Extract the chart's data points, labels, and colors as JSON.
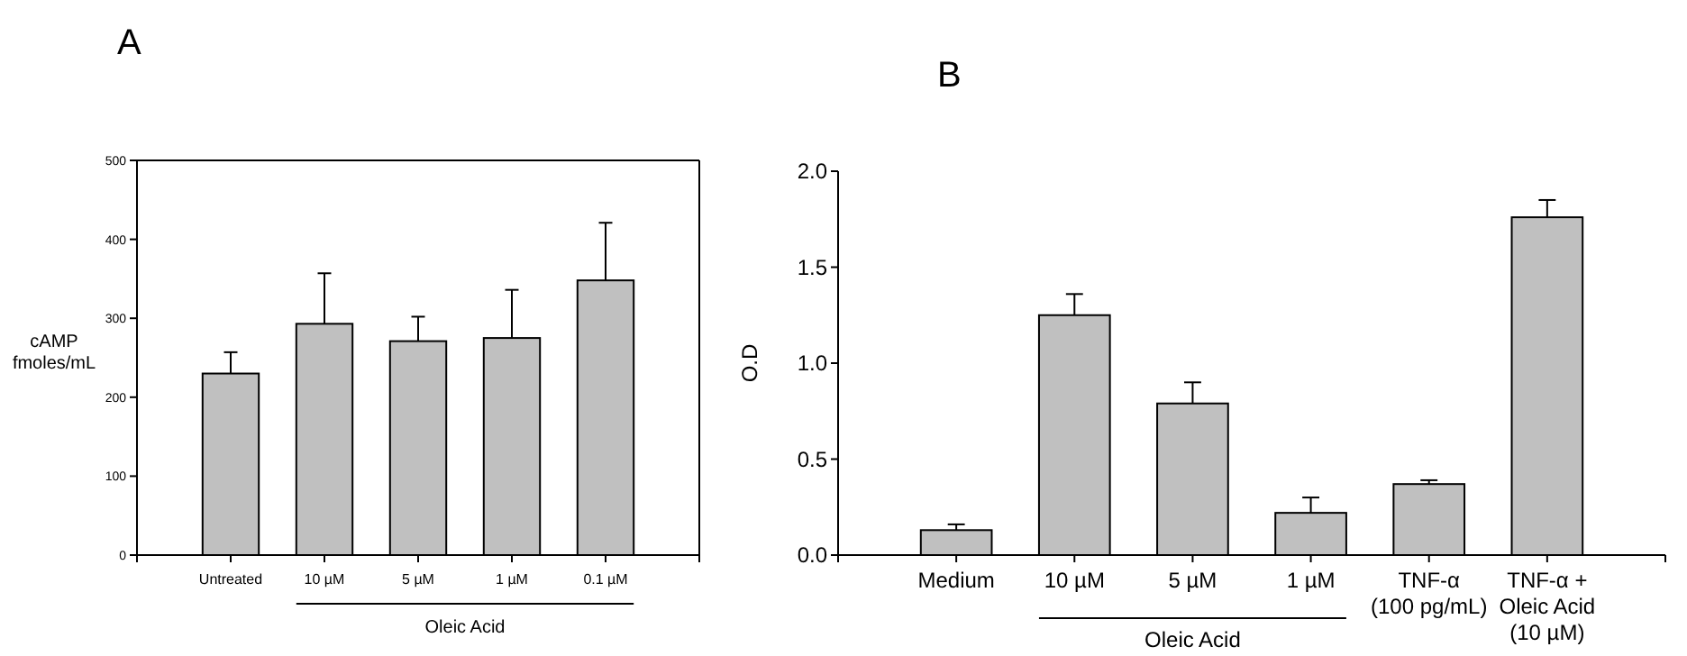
{
  "chart_data": [
    {
      "type": "bar",
      "title": "A",
      "ylabel": "cAMP\nfmoles/mL",
      "categories": [
        "Untreated",
        "10 µM",
        "5 µM",
        "1 µM",
        "0.1 µM"
      ],
      "values": [
        230,
        293,
        271,
        275,
        348
      ],
      "errors": [
        [
          230,
          257
        ],
        [
          293,
          357
        ],
        [
          271,
          302
        ],
        [
          275,
          336
        ],
        [
          348,
          421
        ]
      ],
      "color": "#c0c0c0",
      "ylim": [
        0,
        500
      ],
      "yticks": [
        0,
        100,
        200,
        300,
        400,
        500
      ],
      "grid": false,
      "annotations": [
        "Oleic Acid"
      ]
    },
    {
      "type": "bar",
      "title": "B",
      "ylabel": "O.D",
      "categories": [
        "Medium",
        "10 µM",
        "5 µM",
        "1 µM",
        "TNF-α\n(100 pg/mL)",
        "TNF-α +\nOleic Acid\n(10 µM)"
      ],
      "values": [
        0.13,
        1.25,
        0.79,
        0.22,
        0.37,
        1.76
      ],
      "errors": [
        [
          0.13,
          0.16
        ],
        [
          1.25,
          1.36
        ],
        [
          0.79,
          0.9
        ],
        [
          0.22,
          0.3
        ],
        [
          0.37,
          0.39
        ],
        [
          1.76,
          1.85
        ]
      ],
      "color": "#c0c0c0",
      "ylim": [
        0,
        2
      ],
      "yticks": [
        {
          "value": 0,
          "label": "0.0"
        },
        0.5,
        {
          "value": 1,
          "label": "1.0"
        },
        1.5,
        {
          "value": 2,
          "label": "2.0"
        }
      ],
      "grid": false,
      "annotations": [
        "Oleic Acid"
      ]
    }
  ]
}
